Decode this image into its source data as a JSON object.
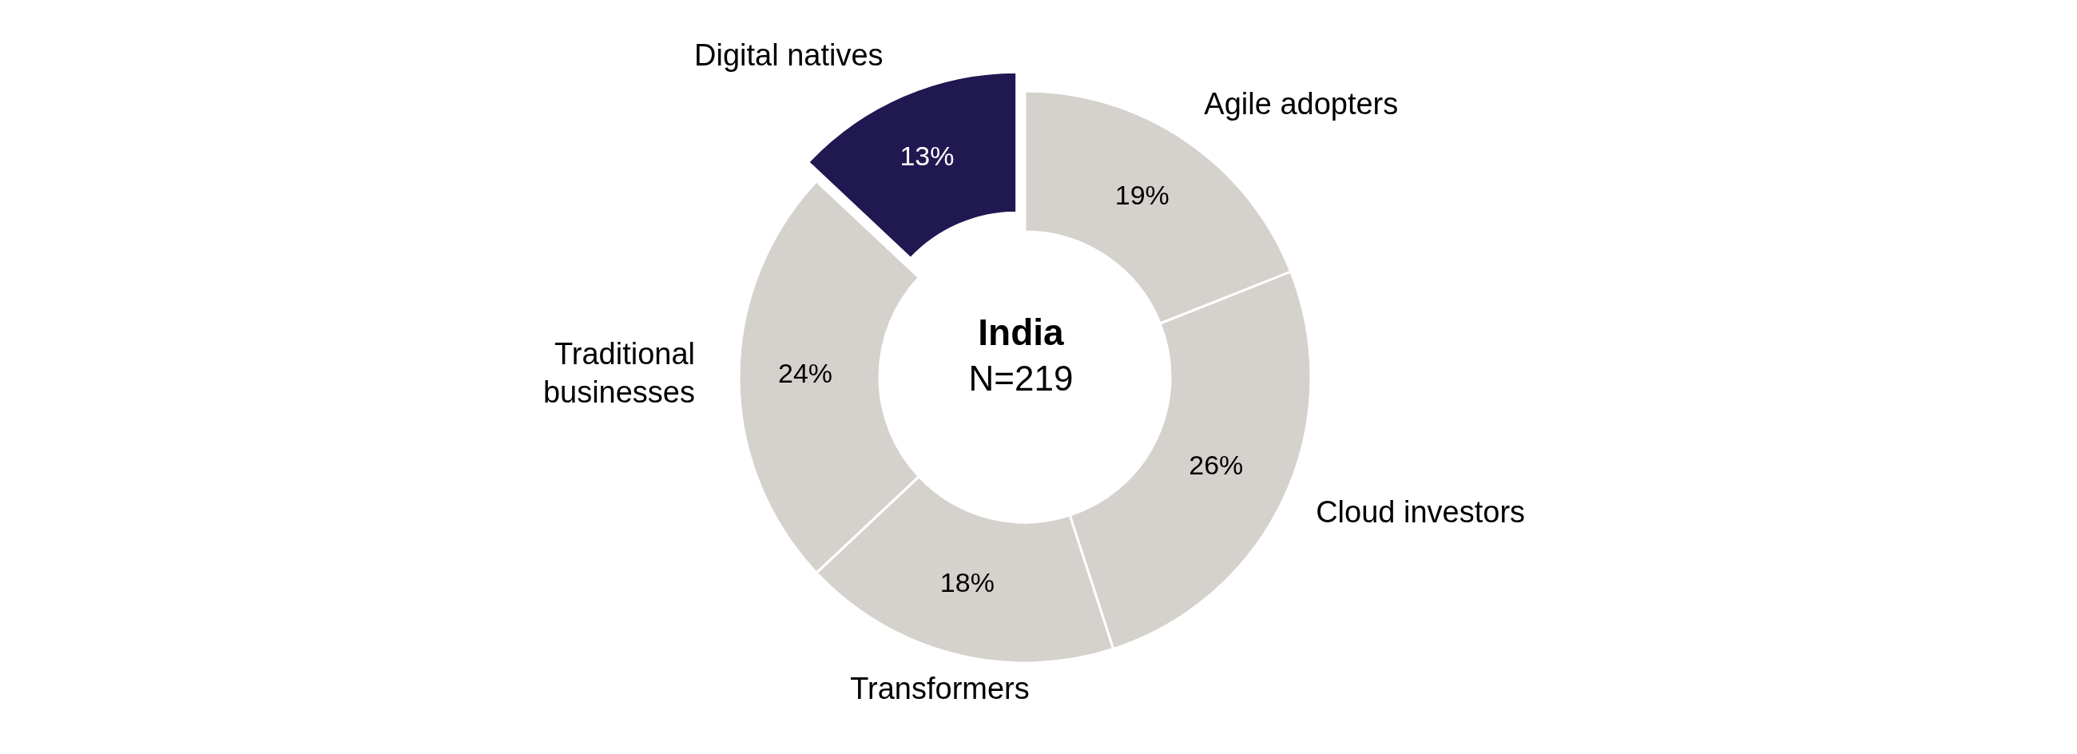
{
  "chart_data": {
    "type": "donut",
    "title": "India",
    "subtitle": "N=219",
    "categories": [
      "Agile adopters",
      "Cloud investors",
      "Transformers",
      "Traditional businesses",
      "Digital natives"
    ],
    "values": [
      19,
      26,
      18,
      24,
      13
    ],
    "colors": [
      "#d5d2cd",
      "#d5d2cd",
      "#d5d2cd",
      "#d5d2cd",
      "#201850"
    ],
    "value_labels": [
      "19%",
      "26%",
      "18%",
      "24%",
      "13%"
    ]
  }
}
